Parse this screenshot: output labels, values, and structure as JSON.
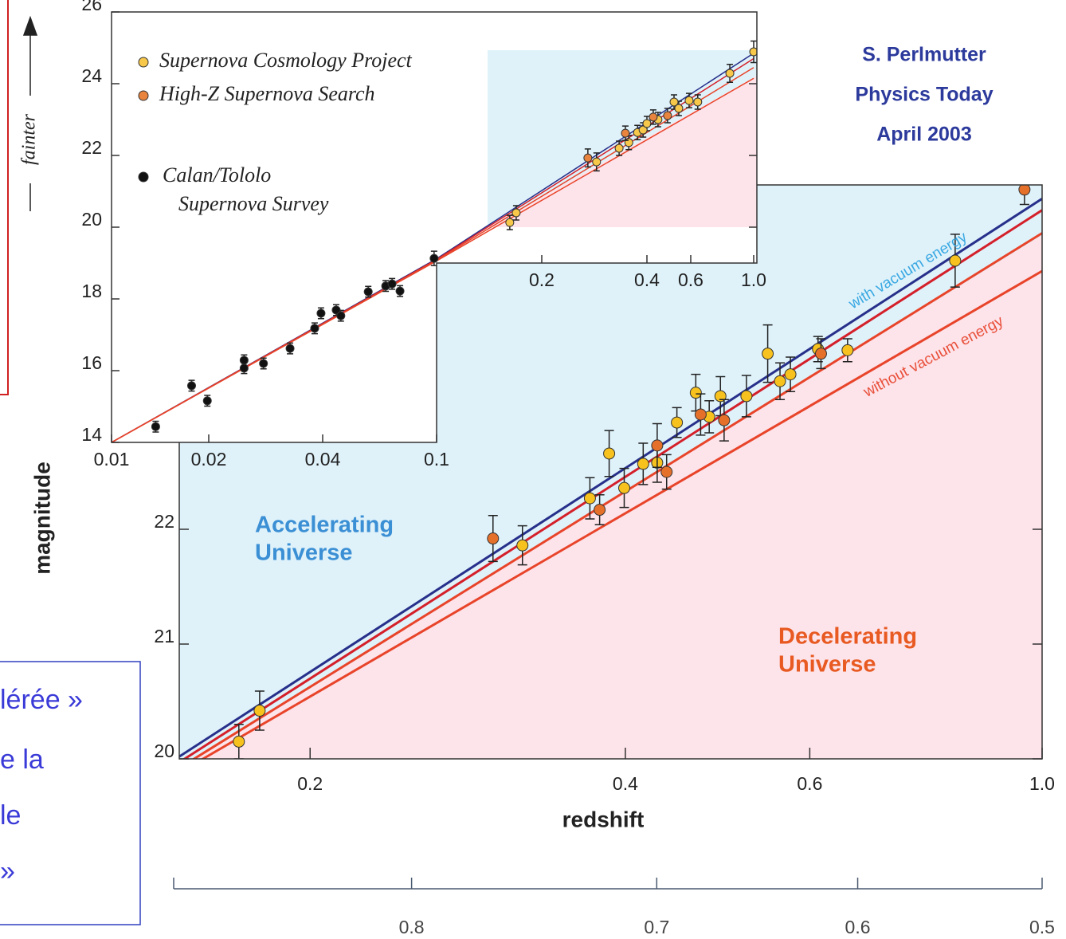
{
  "chart_data": [
    {
      "type": "scatter",
      "xlabel": "redshift",
      "ylabel": "magnitude",
      "xscale": "log",
      "xlim": [
        0.15,
        1.0
      ],
      "xticks": [
        0.2,
        0.4,
        0.6,
        {
          "value": 1,
          "label": "1.0"
        }
      ],
      "ylim": [
        20,
        25
      ],
      "yticks": [
        20,
        21,
        22
      ],
      "x2ticks": [
        0.8,
        0.7,
        0.6,
        0.5
      ],
      "series": [
        {
          "color": "#f7c21e",
          "x": [
            0.171,
            0.179,
            0.319,
            0.37,
            0.386,
            0.399,
            0.416,
            0.429,
            0.448,
            0.467,
            0.481,
            0.493,
            0.522,
            0.547,
            0.562,
            0.575,
            0.611,
            0.652,
            0.826
          ],
          "values": [
            20.15,
            20.42,
            21.86,
            22.27,
            22.66,
            22.36,
            22.57,
            22.58,
            22.93,
            23.19,
            22.98,
            23.16,
            23.16,
            23.53,
            23.29,
            23.35,
            23.57,
            23.56,
            24.34
          ],
          "errors": [
            0.15,
            0.17,
            0.17,
            0.18,
            0.2,
            0.17,
            0.18,
            0.17,
            0.13,
            0.16,
            0.14,
            0.17,
            0.18,
            0.25,
            0.16,
            0.15,
            0.11,
            0.1,
            0.23
          ]
        },
        {
          "color": "#e5702a",
          "x": [
            0.299,
            0.378,
            0.429,
            0.438,
            0.472,
            0.497,
            0.615,
            0.962
          ],
          "values": [
            21.92,
            22.17,
            22.73,
            22.5,
            23.0,
            22.95,
            23.53,
            24.96
          ],
          "errors": [
            0.2,
            0.13,
            0.19,
            0.15,
            0.18,
            0.18,
            0.13,
            0.13
          ]
        }
      ],
      "lines": [
        {
          "color": "#27308a",
          "x": [
            0.15,
            1.0
          ],
          "values": [
            20.02,
            24.88
          ]
        },
        {
          "color": "#d4202a",
          "x": [
            0.15,
            1.0
          ],
          "values": [
            19.97,
            24.78
          ]
        },
        {
          "color": "#e8442a",
          "x": [
            0.15,
            1.0
          ],
          "values": [
            19.92,
            24.58
          ]
        },
        {
          "color": "#e8442a",
          "x": [
            0.15,
            1.0
          ],
          "values": [
            19.88,
            24.25
          ]
        }
      ],
      "annotations": {
        "accelerating": [
          "Accelerating",
          "Universe"
        ],
        "decelerating": [
          "Decelerating",
          "Universe"
        ],
        "with": "with vacuum energy",
        "without": "without vacuum energy"
      }
    },
    {
      "type": "scatter",
      "ylabel": "fainter",
      "xscale": "log",
      "xlim": [
        0.01,
        1.0
      ],
      "xticks": [
        0.01,
        0.02,
        0.04,
        0.1,
        0.2,
        0.4,
        0.6,
        {
          "value": 1,
          "label": "1.0"
        }
      ],
      "ylim": [
        14,
        26
      ],
      "yticks": [
        14,
        16,
        18,
        20,
        22,
        24,
        26
      ],
      "series": [
        {
          "name": "Supernova Cosmology Project",
          "color": "#f7c84a",
          "x": [
            0.162,
            0.169,
            0.287,
            0.333,
            0.355,
            0.376,
            0.39,
            0.4,
            0.443,
            0.514,
            0.537,
            0.591,
            0.635,
            0.824,
            1.0
          ],
          "values": [
            20.13,
            20.4,
            21.82,
            22.2,
            22.36,
            22.64,
            22.71,
            22.89,
            23.0,
            23.49,
            23.31,
            23.53,
            23.49,
            24.29,
            24.89
          ],
          "errors": [
            0.2,
            0.2,
            0.25,
            0.2,
            0.2,
            0.2,
            0.2,
            0.2,
            0.2,
            0.2,
            0.2,
            0.2,
            0.2,
            0.25,
            0.3
          ]
        },
        {
          "name": "High-Z Supernova Search",
          "color": "#e8843e",
          "x": [
            0.271,
            0.347,
            0.424,
            0.484
          ],
          "values": [
            21.93,
            22.62,
            23.07,
            23.11
          ],
          "errors": [
            0.25,
            0.2,
            0.2,
            0.2
          ]
        },
        {
          "name": [
            "Calan/Tololo",
            "Supernova Survey"
          ],
          "color": "#111111",
          "x": [
            0.0137,
            0.0177,
            0.0198,
            0.0248,
            0.0248,
            0.0279,
            0.0328,
            0.0381,
            0.0396,
            0.0446,
            0.0463,
            0.0577,
            0.0664,
            0.0699,
            0.0745,
            0.098
          ],
          "values": [
            14.44,
            15.58,
            15.16,
            16.29,
            16.07,
            16.2,
            16.62,
            17.18,
            17.6,
            17.69,
            17.53,
            18.2,
            18.36,
            18.42,
            18.22,
            19.13
          ],
          "errors": [
            0.15,
            0.15,
            0.15,
            0.15,
            0.15,
            0.15,
            0.15,
            0.15,
            0.15,
            0.15,
            0.15,
            0.15,
            0.15,
            0.15,
            0.15,
            0.2
          ]
        }
      ],
      "lines": [
        {
          "color": "#27308a",
          "x": [
            0.01,
            0.1,
            1.0
          ],
          "values": [
            14.0,
            19.12,
            24.85
          ]
        },
        {
          "color": "#d4202a",
          "x": [
            0.01,
            0.1,
            1.0
          ],
          "values": [
            14.0,
            19.1,
            24.7
          ]
        },
        {
          "color": "#e8442a",
          "x": [
            0.01,
            0.1,
            1.0
          ],
          "values": [
            14.0,
            19.08,
            24.45
          ]
        },
        {
          "color": "#e8442a",
          "x": [
            0.01,
            0.1,
            1.0
          ],
          "values": [
            14.0,
            19.06,
            24.15
          ]
        }
      ]
    }
  ],
  "credit": [
    "S. Perlmutter",
    "Physics Today",
    "April 2003"
  ],
  "text_box": [
    "lérée »",
    "e la",
    "le",
    "»"
  ]
}
